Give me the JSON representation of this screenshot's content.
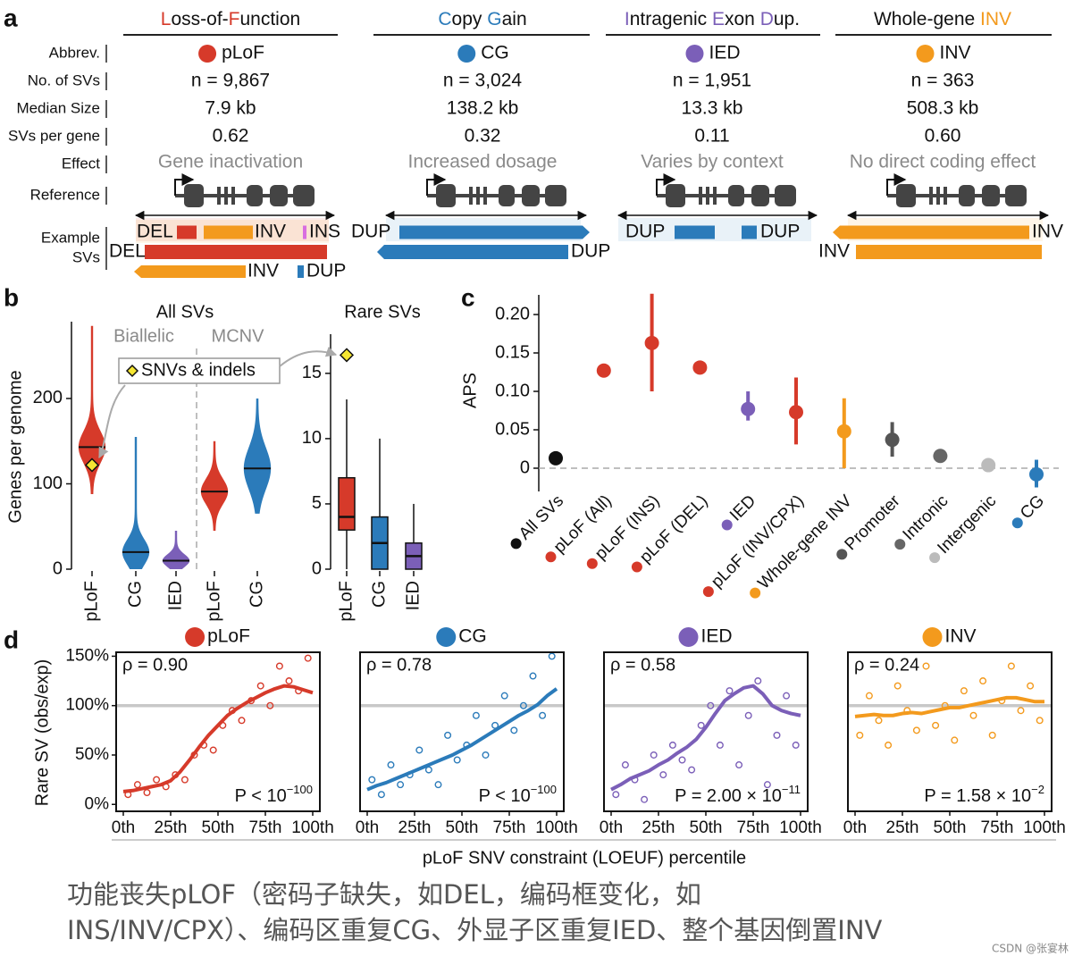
{
  "panel_a": {
    "label": "a",
    "row_labels": [
      "Abbrev.",
      "No. of SVs",
      "Median Size",
      "SVs per gene",
      "Effect",
      "Reference",
      "Example",
      "SVs"
    ],
    "columns": [
      {
        "title": [
          {
            "text": "L",
            "color": "#d63a2a"
          },
          {
            "text": "oss-of-",
            "color": "#111111"
          },
          {
            "text": "F",
            "color": "#d63a2a"
          },
          {
            "text": "unction",
            "color": "#111111"
          }
        ],
        "abbrev": "pLoF",
        "color": "#d63a2a",
        "count": "n = 9,867",
        "median_size": "7.9 kb",
        "svs_per_gene": "0.62",
        "effect": "Gene inactivation",
        "examples": [
          {
            "text": "DEL",
            "color": "#d63a2a"
          },
          {
            "text": "INV",
            "color": "#f39a1d"
          },
          {
            "text": "INS",
            "color": "#d86ee0"
          },
          {
            "text": "DEL",
            "color": "#d63a2a"
          },
          {
            "text": "INV",
            "color": "#f39a1d"
          },
          {
            "text": "DUP",
            "color": "#2b7bba"
          }
        ]
      },
      {
        "title": [
          {
            "text": "C",
            "color": "#2b7bba"
          },
          {
            "text": "opy ",
            "color": "#111111"
          },
          {
            "text": "G",
            "color": "#2b7bba"
          },
          {
            "text": "ain",
            "color": "#111111"
          }
        ],
        "abbrev": "CG",
        "color": "#2b7bba",
        "count": "n = 3,024",
        "median_size": "138.2 kb",
        "svs_per_gene": "0.32",
        "effect": "Increased dosage",
        "examples": [
          {
            "text": "DUP",
            "color": "#2b7bba"
          },
          {
            "text": "DUP",
            "color": "#2b7bba"
          }
        ]
      },
      {
        "title": [
          {
            "text": "I",
            "color": "#7b5fb8"
          },
          {
            "text": "ntragenic ",
            "color": "#111111"
          },
          {
            "text": "E",
            "color": "#7b5fb8"
          },
          {
            "text": "xon ",
            "color": "#111111"
          },
          {
            "text": "D",
            "color": "#7b5fb8"
          },
          {
            "text": "up.",
            "color": "#111111"
          }
        ],
        "abbrev": "IED",
        "color": "#7b5fb8",
        "count": "n = 1,951",
        "median_size": "13.3 kb",
        "svs_per_gene": "0.11",
        "effect": "Varies by context",
        "examples": [
          {
            "text": "DUP",
            "color": "#2b7bba"
          },
          {
            "text": "DUP",
            "color": "#2b7bba"
          }
        ]
      },
      {
        "title": [
          {
            "text": "Whole-gene ",
            "color": "#111111"
          },
          {
            "text": "INV",
            "color": "#f39a1d"
          }
        ],
        "abbrev": "INV",
        "color": "#f39a1d",
        "count": "n = 363",
        "median_size": "508.3 kb",
        "svs_per_gene": "0.60",
        "effect": "No direct coding effect",
        "examples": [
          {
            "text": "INV",
            "color": "#f39a1d"
          },
          {
            "text": "INV",
            "color": "#f39a1d"
          }
        ]
      }
    ]
  },
  "chart_data": [
    {
      "type": "violin",
      "panel": "b",
      "title": "All SVs",
      "groups": [
        "Biallelic",
        "MCNV"
      ],
      "ylabel": "Genes per genome",
      "categories": [
        "pLoF",
        "CG",
        "IED",
        "pLoF",
        "CG"
      ],
      "colors": [
        "#d63a2a",
        "#2b7bba",
        "#7b5fb8",
        "#d63a2a",
        "#2b7bba"
      ],
      "min": [
        88,
        0,
        0,
        45,
        65
      ],
      "q1": [
        130,
        12,
        5,
        80,
        102
      ],
      "median": [
        143,
        20,
        10,
        91,
        118
      ],
      "q3": [
        155,
        32,
        15,
        100,
        135
      ],
      "max": [
        285,
        155,
        45,
        150,
        200
      ],
      "ylim": [
        0,
        290
      ],
      "yticks": [
        0,
        100,
        200
      ],
      "annotation": "SNVs & indels",
      "marker_values": [
        122,
        null,
        null,
        null,
        null
      ],
      "marker_color": "#f5e632"
    },
    {
      "type": "box",
      "title": "Rare SVs",
      "categories": [
        "pLoF",
        "CG",
        "IED"
      ],
      "colors": [
        "#d63a2a",
        "#2b7bba",
        "#7b5fb8"
      ],
      "whisker_low": [
        0,
        0,
        0
      ],
      "q1": [
        3,
        0,
        0
      ],
      "median": [
        4,
        2,
        1
      ],
      "q3": [
        7,
        4,
        2
      ],
      "whisker_high": [
        13,
        10,
        5
      ],
      "ylim": [
        0,
        18
      ],
      "yticks": [
        0,
        5,
        10,
        15
      ],
      "marker_values": [
        16.4,
        null,
        null
      ],
      "marker_color": "#f5e632"
    },
    {
      "type": "errorbar",
      "panel": "c",
      "ylabel": "APS",
      "categories": [
        "All SVs",
        "pLoF (All)",
        "pLoF (INS)",
        "pLoF (DEL)",
        "IED",
        "pLoF (INV/CPX)",
        "Whole-gene INV",
        "Promoter",
        "Intronic",
        "Intergenic",
        "CG"
      ],
      "values": [
        0.013,
        0.127,
        0.163,
        0.131,
        0.077,
        0.073,
        0.048,
        0.037,
        0.016,
        0.004,
        -0.008
      ],
      "error_low": [
        0.011,
        0.121,
        0.1,
        0.125,
        0.062,
        0.031,
        0,
        0.015,
        0.012,
        0.002,
        -0.025
      ],
      "error_high": [
        0.015,
        0.133,
        0.227,
        0.138,
        0.1,
        0.118,
        0.091,
        0.06,
        0.02,
        0.006,
        0.011
      ],
      "colors": [
        "#111111",
        "#d63a2a",
        "#d63a2a",
        "#d63a2a",
        "#7b5fb8",
        "#d63a2a",
        "#f39a1d",
        "#555555",
        "#666666",
        "#bbbbbb",
        "#2b7bba"
      ],
      "ylim": [
        -0.03,
        0.225
      ],
      "yticks": [
        0,
        0.05,
        {
          "value": 0.1,
          "label": "0.10"
        },
        0.15,
        {
          "value": 0.2,
          "label": "0.20"
        }
      ],
      "hline": 0
    },
    {
      "type": "scatter",
      "panel": "d",
      "title": "pLoF",
      "color": "#d63a2a",
      "ylabel": "Rare SV (obs/exp)",
      "xlabel": "pLoF SNV constraint (LOEUF) percentile",
      "x": [
        2.5,
        7.5,
        12.5,
        17.5,
        22.5,
        27.5,
        32.5,
        37.5,
        42.5,
        47.5,
        52.5,
        57.5,
        62.5,
        67.5,
        72.5,
        77.5,
        82.5,
        87.5,
        92.5,
        97.5
      ],
      "values": [
        10,
        20,
        12,
        25,
        18,
        30,
        25,
        50,
        60,
        55,
        80,
        95,
        85,
        105,
        120,
        100,
        140,
        125,
        115,
        148
      ],
      "trend_x": [
        0,
        5,
        10,
        15,
        20,
        25,
        30,
        35,
        40,
        45,
        50,
        55,
        60,
        65,
        70,
        75,
        80,
        85,
        90,
        95,
        100
      ],
      "trend": [
        13,
        14,
        16,
        18,
        20,
        24,
        33,
        45,
        58,
        70,
        80,
        90,
        97,
        103,
        108,
        113,
        117,
        120,
        119,
        116,
        113
      ],
      "xlim": [
        0,
        100
      ],
      "xticks": [
        {
          "value": 0,
          "label": "0th"
        },
        {
          "value": 25,
          "label": "25th"
        },
        {
          "value": 50,
          "label": "50th"
        },
        {
          "value": 75,
          "label": "75th"
        },
        {
          "value": 100,
          "label": "100th"
        }
      ],
      "ylim": [
        -7,
        154
      ],
      "yticks": [
        {
          "value": 0,
          "label": "0%"
        },
        {
          "value": 50,
          "label": "50%"
        },
        {
          "value": 100,
          "label": "100%"
        },
        {
          "value": 150,
          "label": "150%"
        }
      ],
      "hline": 100,
      "rho": "ρ = 0.90",
      "p_label": "P < 10",
      "p_exponent": "−100"
    },
    {
      "type": "scatter",
      "title": "CG",
      "color": "#2b7bba",
      "x": [
        2.5,
        7.5,
        12.5,
        17.5,
        22.5,
        27.5,
        32.5,
        37.5,
        42.5,
        47.5,
        52.5,
        57.5,
        62.5,
        67.5,
        72.5,
        77.5,
        82.5,
        87.5,
        92.5,
        97.5
      ],
      "values": [
        25,
        10,
        40,
        20,
        30,
        55,
        35,
        20,
        70,
        45,
        60,
        90,
        50,
        80,
        110,
        75,
        100,
        130,
        90,
        150
      ],
      "trend_x": [
        0,
        5,
        10,
        15,
        20,
        25,
        30,
        35,
        40,
        45,
        50,
        55,
        60,
        65,
        70,
        75,
        80,
        85,
        90,
        95,
        100
      ],
      "trend": [
        15,
        19,
        22,
        26,
        30,
        34,
        38,
        42,
        46,
        50,
        55,
        60,
        66,
        72,
        78,
        84,
        90,
        95,
        101,
        110,
        117
      ],
      "xlim": [
        0,
        100
      ],
      "xticks": [
        {
          "value": 0,
          "label": "0th"
        },
        {
          "value": 25,
          "label": "25th"
        },
        {
          "value": 50,
          "label": "50th"
        },
        {
          "value": 75,
          "label": "75th"
        },
        {
          "value": 100,
          "label": "100th"
        }
      ],
      "ylim": [
        -7,
        154
      ],
      "hline": 100,
      "rho": "ρ = 0.78",
      "p_label": "P < 10",
      "p_exponent": "−100"
    },
    {
      "type": "scatter",
      "title": "IED",
      "color": "#7b5fb8",
      "x": [
        2.5,
        7.5,
        12.5,
        17.5,
        22.5,
        27.5,
        32.5,
        37.5,
        42.5,
        47.5,
        52.5,
        57.5,
        62.5,
        67.5,
        72.5,
        77.5,
        82.5,
        87.5,
        92.5,
        97.5
      ],
      "values": [
        10,
        40,
        25,
        5,
        50,
        30,
        60,
        45,
        35,
        80,
        100,
        60,
        115,
        40,
        90,
        125,
        20,
        70,
        110,
        60
      ],
      "trend_x": [
        0,
        5,
        10,
        15,
        20,
        25,
        30,
        35,
        40,
        45,
        50,
        55,
        60,
        65,
        70,
        75,
        80,
        85,
        90,
        95,
        100
      ],
      "trend": [
        15,
        20,
        26,
        30,
        34,
        40,
        45,
        52,
        58,
        66,
        78,
        92,
        105,
        112,
        118,
        120,
        112,
        100,
        95,
        92,
        90
      ],
      "xlim": [
        0,
        100
      ],
      "xticks": [
        {
          "value": 0,
          "label": "0th"
        },
        {
          "value": 25,
          "label": "25th"
        },
        {
          "value": 50,
          "label": "50th"
        },
        {
          "value": 75,
          "label": "75th"
        },
        {
          "value": 100,
          "label": "100th"
        }
      ],
      "ylim": [
        -7,
        154
      ],
      "hline": 100,
      "rho": "ρ = 0.58",
      "p_label": "P = 2.00 × 10",
      "p_exponent": "−11"
    },
    {
      "type": "scatter",
      "title": "INV",
      "color": "#f39a1d",
      "x": [
        2.5,
        7.5,
        12.5,
        17.5,
        22.5,
        27.5,
        32.5,
        37.5,
        42.5,
        47.5,
        52.5,
        57.5,
        62.5,
        67.5,
        72.5,
        77.5,
        82.5,
        87.5,
        92.5,
        97.5
      ],
      "values": [
        70,
        110,
        85,
        60,
        120,
        95,
        75,
        140,
        80,
        100,
        65,
        115,
        90,
        125,
        70,
        105,
        140,
        95,
        120,
        85
      ],
      "trend_x": [
        0,
        5,
        10,
        15,
        20,
        25,
        30,
        35,
        40,
        45,
        50,
        55,
        60,
        65,
        70,
        75,
        80,
        85,
        90,
        95,
        100
      ],
      "trend": [
        89,
        90,
        91,
        90,
        90,
        92,
        93,
        92,
        94,
        96,
        98,
        98,
        100,
        102,
        104,
        106,
        108,
        108,
        106,
        104,
        104
      ],
      "xlim": [
        0,
        100
      ],
      "xticks": [
        {
          "value": 0,
          "label": "0th"
        },
        {
          "value": 25,
          "label": "25th"
        },
        {
          "value": 50,
          "label": "50th"
        },
        {
          "value": 75,
          "label": "75th"
        },
        {
          "value": 100,
          "label": "100th"
        }
      ],
      "ylim": [
        -7,
        154
      ],
      "hline": 100,
      "rho": "ρ = 0.24",
      "p_label": "P = 1.58 × 10",
      "p_exponent": "−2"
    }
  ],
  "caption": [
    "功能丧失pLOF（密码子缺失，如DEL，编码框变化，如",
    "INS/INV/CPX）、编码区重复CG、外显子区重复IED、整个基因倒置INV"
  ],
  "watermark": "CSDN @张宴林"
}
